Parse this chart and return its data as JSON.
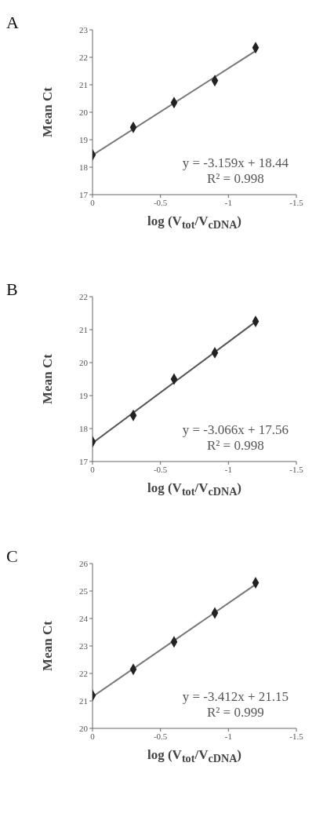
{
  "chart_data": [
    {
      "type": "scatter",
      "title": "A",
      "xlabel": "log (V$_{tot}$/V$_{cDNA}$)",
      "ylabel": "Mean Ct",
      "xlim": [
        0,
        -1.5
      ],
      "xticks": [
        0,
        -0.5,
        -1,
        -1.5
      ],
      "ylim": [
        17,
        23
      ],
      "yticks": [
        17,
        18,
        19,
        20,
        21,
        22,
        23
      ],
      "grid": false,
      "legend": false,
      "annotations": [
        "y = -3.159x + 18.44",
        "R² = 0.998"
      ],
      "series": [
        {
          "marker": "diamond",
          "color": "#222222",
          "x": [
            0,
            -0.3,
            -0.6,
            -0.9,
            -1.2
          ],
          "values": [
            18.45,
            19.45,
            20.35,
            21.15,
            22.35
          ]
        },
        {
          "type": "line",
          "marker": "none",
          "color": "#777777",
          "x": [
            0,
            -1.2
          ],
          "values": [
            18.44,
            22.23
          ]
        }
      ]
    },
    {
      "type": "scatter",
      "title": "B",
      "xlabel": "log (V$_{tot}$/V$_{cDNA}$)",
      "ylabel": "Mean Ct",
      "xlim": [
        0,
        -1.5
      ],
      "xticks": [
        0,
        -0.5,
        -1,
        -1.5
      ],
      "ylim": [
        17,
        22
      ],
      "yticks": [
        17,
        18,
        19,
        20,
        21,
        22
      ],
      "grid": false,
      "legend": false,
      "annotations": [
        "y = -3.066x + 17.56",
        "R² = 0.998"
      ],
      "series": [
        {
          "marker": "diamond",
          "color": "#222222",
          "x": [
            0,
            -0.3,
            -0.6,
            -0.9,
            -1.2
          ],
          "values": [
            17.6,
            18.4,
            19.5,
            20.3,
            21.25
          ]
        },
        {
          "type": "line",
          "marker": "none",
          "color": "#555555",
          "x": [
            0,
            -1.2
          ],
          "values": [
            17.56,
            21.24
          ]
        }
      ]
    },
    {
      "type": "scatter",
      "title": "C",
      "xlabel": "log (V$_{tot}$/V$_{cDNA}$)",
      "ylabel": "Mean Ct",
      "xlim": [
        0,
        -1.5
      ],
      "xticks": [
        0,
        -0.5,
        -1,
        -1.5
      ],
      "ylim": [
        20,
        26
      ],
      "yticks": [
        20,
        21,
        22,
        23,
        24,
        25,
        26
      ],
      "grid": false,
      "legend": false,
      "annotations": [
        "y = -3.412x + 21.15",
        "R² = 0.999"
      ],
      "series": [
        {
          "marker": "diamond",
          "color": "#222222",
          "x": [
            0,
            -0.3,
            -0.6,
            -0.9,
            -1.2
          ],
          "values": [
            21.2,
            22.15,
            23.15,
            24.2,
            25.3
          ]
        },
        {
          "type": "line",
          "marker": "none",
          "color": "#777777",
          "x": [
            0,
            -1.2
          ],
          "values": [
            21.15,
            25.24
          ]
        }
      ]
    }
  ]
}
